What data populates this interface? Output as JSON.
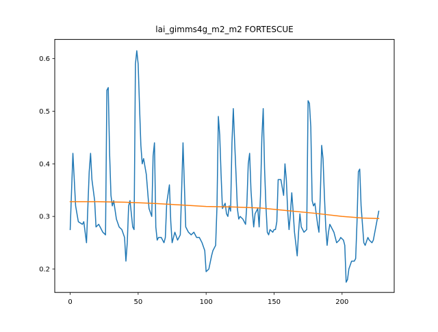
{
  "chart_data": {
    "type": "line",
    "title": "lai_gimms4g_m2_m2 FORTESCUE",
    "xlabel": "",
    "ylabel": "",
    "xlim": [
      -11.35,
      238.35
    ],
    "ylim": [
      0.1555,
      0.6365
    ],
    "xticks": [
      0,
      50,
      100,
      150,
      200
    ],
    "xtick_labels": [
      "0",
      "50",
      "100",
      "150",
      "200"
    ],
    "yticks": [
      0.2,
      0.3,
      0.4,
      0.5,
      0.6
    ],
    "ytick_labels": [
      "0.2",
      "0.3",
      "0.4",
      "0.5",
      "0.6"
    ],
    "grid": false,
    "legend": "none",
    "colors": {
      "series_1": "#1f77b4",
      "series_2": "#ff7f0e"
    },
    "series": [
      {
        "points": [
          [
            0,
            0.275
          ],
          [
            2,
            0.42
          ],
          [
            4,
            0.32
          ],
          [
            6,
            0.29
          ],
          [
            9,
            0.285
          ],
          [
            10,
            0.29
          ],
          [
            12,
            0.25
          ],
          [
            14,
            0.385
          ],
          [
            15,
            0.42
          ],
          [
            16,
            0.37
          ],
          [
            18,
            0.33
          ],
          [
            19,
            0.28
          ],
          [
            21,
            0.285
          ],
          [
            22,
            0.28
          ],
          [
            24,
            0.27
          ],
          [
            26,
            0.265
          ],
          [
            27,
            0.54
          ],
          [
            28,
            0.545
          ],
          [
            29,
            0.42
          ],
          [
            30,
            0.34
          ],
          [
            31,
            0.32
          ],
          [
            32,
            0.33
          ],
          [
            34,
            0.295
          ],
          [
            36,
            0.28
          ],
          [
            38,
            0.275
          ],
          [
            40,
            0.26
          ],
          [
            41,
            0.215
          ],
          [
            42,
            0.25
          ],
          [
            43,
            0.32
          ],
          [
            44,
            0.33
          ],
          [
            46,
            0.28
          ],
          [
            47,
            0.275
          ],
          [
            48,
            0.59
          ],
          [
            49,
            0.615
          ],
          [
            50,
            0.59
          ],
          [
            51,
            0.51
          ],
          [
            52,
            0.435
          ],
          [
            53,
            0.4
          ],
          [
            54,
            0.41
          ],
          [
            56,
            0.38
          ],
          [
            58,
            0.315
          ],
          [
            60,
            0.3
          ],
          [
            61,
            0.415
          ],
          [
            62,
            0.44
          ],
          [
            63,
            0.28
          ],
          [
            64,
            0.255
          ],
          [
            65,
            0.26
          ],
          [
            67,
            0.26
          ],
          [
            68,
            0.255
          ],
          [
            69,
            0.25
          ],
          [
            70,
            0.26
          ],
          [
            71,
            0.325
          ],
          [
            73,
            0.36
          ],
          [
            74,
            0.29
          ],
          [
            75,
            0.25
          ],
          [
            77,
            0.27
          ],
          [
            79,
            0.255
          ],
          [
            81,
            0.265
          ],
          [
            82,
            0.35
          ],
          [
            83,
            0.44
          ],
          [
            84,
            0.36
          ],
          [
            85,
            0.28
          ],
          [
            87,
            0.27
          ],
          [
            89,
            0.265
          ],
          [
            91,
            0.27
          ],
          [
            93,
            0.26
          ],
          [
            95,
            0.26
          ],
          [
            97,
            0.25
          ],
          [
            99,
            0.235
          ],
          [
            100,
            0.195
          ],
          [
            102,
            0.2
          ],
          [
            104,
            0.225
          ],
          [
            105,
            0.235
          ],
          [
            107,
            0.245
          ],
          [
            108,
            0.32
          ],
          [
            109,
            0.49
          ],
          [
            110,
            0.455
          ],
          [
            111,
            0.38
          ],
          [
            112,
            0.315
          ],
          [
            113,
            0.32
          ],
          [
            114,
            0.325
          ],
          [
            115,
            0.305
          ],
          [
            116,
            0.3
          ],
          [
            117,
            0.32
          ],
          [
            118,
            0.31
          ],
          [
            119,
            0.44
          ],
          [
            120,
            0.505
          ],
          [
            121,
            0.44
          ],
          [
            122,
            0.38
          ],
          [
            123,
            0.315
          ],
          [
            124,
            0.295
          ],
          [
            125,
            0.3
          ],
          [
            127,
            0.295
          ],
          [
            129,
            0.285
          ],
          [
            130,
            0.325
          ],
          [
            131,
            0.4
          ],
          [
            132,
            0.42
          ],
          [
            133,
            0.35
          ],
          [
            134,
            0.31
          ],
          [
            135,
            0.28
          ],
          [
            136,
            0.305
          ],
          [
            138,
            0.315
          ],
          [
            139,
            0.28
          ],
          [
            140,
            0.34
          ],
          [
            141,
            0.45
          ],
          [
            142,
            0.505
          ],
          [
            143,
            0.39
          ],
          [
            144,
            0.32
          ],
          [
            145,
            0.27
          ],
          [
            146,
            0.265
          ],
          [
            147,
            0.275
          ],
          [
            149,
            0.27
          ],
          [
            150,
            0.275
          ],
          [
            151,
            0.275
          ],
          [
            152,
            0.29
          ],
          [
            153,
            0.37
          ],
          [
            155,
            0.37
          ],
          [
            157,
            0.34
          ],
          [
            158,
            0.4
          ],
          [
            159,
            0.37
          ],
          [
            160,
            0.31
          ],
          [
            161,
            0.275
          ],
          [
            162,
            0.305
          ],
          [
            163,
            0.345
          ],
          [
            164,
            0.31
          ],
          [
            165,
            0.27
          ],
          [
            167,
            0.225
          ],
          [
            168,
            0.27
          ],
          [
            169,
            0.305
          ],
          [
            170,
            0.28
          ],
          [
            172,
            0.27
          ],
          [
            174,
            0.275
          ],
          [
            175,
            0.52
          ],
          [
            176,
            0.515
          ],
          [
            177,
            0.47
          ],
          [
            178,
            0.33
          ],
          [
            179,
            0.32
          ],
          [
            180,
            0.325
          ],
          [
            182,
            0.285
          ],
          [
            183,
            0.27
          ],
          [
            184,
            0.34
          ],
          [
            185,
            0.435
          ],
          [
            186,
            0.41
          ],
          [
            187,
            0.34
          ],
          [
            188,
            0.28
          ],
          [
            189,
            0.245
          ],
          [
            190,
            0.27
          ],
          [
            191,
            0.285
          ],
          [
            193,
            0.275
          ],
          [
            194,
            0.27
          ],
          [
            196,
            0.25
          ],
          [
            198,
            0.255
          ],
          [
            199,
            0.26
          ],
          [
            201,
            0.255
          ],
          [
            202,
            0.245
          ],
          [
            203,
            0.175
          ],
          [
            204,
            0.18
          ],
          [
            205,
            0.2
          ],
          [
            207,
            0.215
          ],
          [
            209,
            0.215
          ],
          [
            210,
            0.22
          ],
          [
            211,
            0.29
          ],
          [
            212,
            0.385
          ],
          [
            213,
            0.39
          ],
          [
            214,
            0.32
          ],
          [
            216,
            0.25
          ],
          [
            217,
            0.245
          ],
          [
            219,
            0.26
          ],
          [
            220,
            0.255
          ],
          [
            222,
            0.25
          ],
          [
            223,
            0.255
          ],
          [
            227,
            0.31
          ]
        ]
      },
      {
        "points": [
          [
            0,
            0.328
          ],
          [
            20,
            0.328
          ],
          [
            40,
            0.327
          ],
          [
            60,
            0.325
          ],
          [
            80,
            0.322
          ],
          [
            100,
            0.319
          ],
          [
            120,
            0.318
          ],
          [
            140,
            0.316
          ],
          [
            160,
            0.311
          ],
          [
            180,
            0.306
          ],
          [
            200,
            0.3
          ],
          [
            215,
            0.297
          ],
          [
            227,
            0.296
          ]
        ]
      }
    ]
  }
}
